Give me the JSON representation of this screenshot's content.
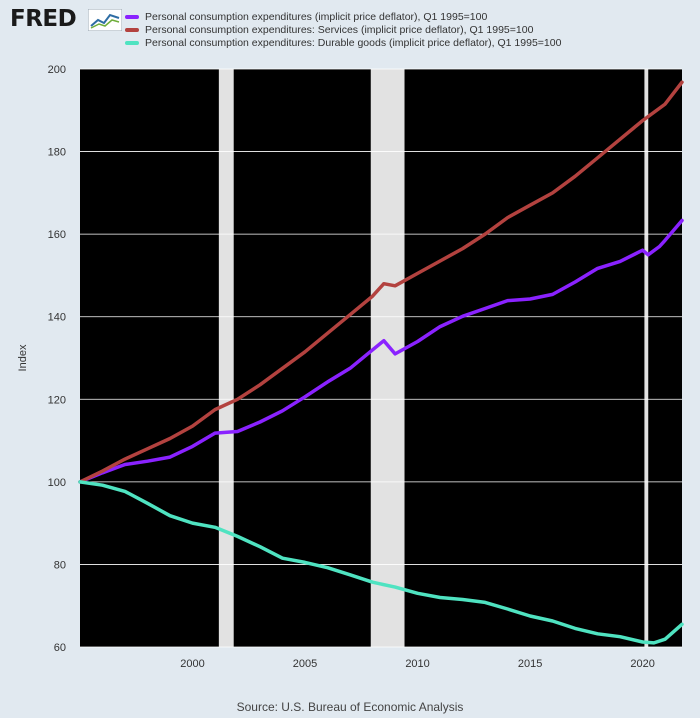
{
  "brand": {
    "logo_text": "FRED",
    "logo_icon": "line-chart-icon"
  },
  "legend": [
    {
      "label": "Personal consumption expenditures (implicit price deflator), Q1 1995=100",
      "color": "#8a22ff"
    },
    {
      "label": "Personal consumption expenditures: Services (implicit price deflator), Q1 1995=100",
      "color": "#b3423f"
    },
    {
      "label": "Personal consumption expenditures: Durable goods (implicit price deflator), Q1 1995=100",
      "color": "#4fe3c1"
    }
  ],
  "source": "Source: U.S. Bureau of Economic Analysis",
  "chart_data": {
    "type": "line",
    "ylabel": "Index",
    "xlabel": "",
    "xlim": [
      1995.0,
      2021.75
    ],
    "ylim": [
      60,
      200
    ],
    "x_ticks": [
      2000,
      2005,
      2010,
      2015,
      2020
    ],
    "y_ticks": [
      60,
      80,
      100,
      120,
      140,
      160,
      180,
      200
    ],
    "grid": true,
    "plot_background": "#000000",
    "legend_position": "top",
    "recessions": [
      [
        2001.17,
        2001.83
      ],
      [
        2007.92,
        2009.42
      ],
      [
        2020.08,
        2020.25
      ]
    ],
    "series": [
      {
        "name": "Personal consumption expenditures (implicit price deflator), Q1 1995=100",
        "color": "#8a22ff",
        "x": [
          1995,
          1996,
          1997,
          1998,
          1999,
          2000,
          2001,
          2002,
          2003,
          2004,
          2005,
          2006,
          2007,
          2008.5,
          2009,
          2010,
          2011,
          2012,
          2013,
          2014,
          2015,
          2016,
          2017,
          2018,
          2019,
          2020,
          2020.25,
          2020.75,
          2021,
          2021.75
        ],
        "values": [
          100,
          102.2,
          104.2,
          105.0,
          106.0,
          108.6,
          111.8,
          112.2,
          114.5,
          117.2,
          120.6,
          124.2,
          127.5,
          134.2,
          131.0,
          134.0,
          137.6,
          140.1,
          142.0,
          143.9,
          144.3,
          145.4,
          148.4,
          151.7,
          153.4,
          156.1,
          155.0,
          157.0,
          158.5,
          163.3
        ]
      },
      {
        "name": "Personal consumption expenditures: Services (implicit price deflator), Q1 1995=100",
        "color": "#b3423f",
        "x": [
          1995,
          1996,
          1997,
          1998,
          1999,
          2000,
          2001,
          2002,
          2003,
          2004,
          2005,
          2006,
          2007,
          2008,
          2008.5,
          2009,
          2010,
          2011,
          2012,
          2013,
          2014,
          2015,
          2016,
          2017,
          2018,
          2019,
          2020,
          2021,
          2021.75
        ],
        "values": [
          100,
          102.6,
          105.5,
          108.0,
          110.5,
          113.5,
          117.5,
          120.0,
          123.5,
          127.5,
          131.5,
          136.0,
          140.5,
          145.0,
          148.0,
          147.5,
          150.5,
          153.5,
          156.5,
          160.0,
          164.0,
          167.0,
          170.0,
          174.0,
          178.5,
          183.0,
          187.5,
          191.5,
          196.8
        ]
      },
      {
        "name": "Personal consumption expenditures: Durable goods (implicit price deflator), Q1 1995=100",
        "color": "#4fe3c1",
        "x": [
          1995,
          1996,
          1997,
          1998,
          1999,
          2000,
          2001,
          2002,
          2003,
          2004,
          2005,
          2006,
          2007,
          2008,
          2009,
          2010,
          2011,
          2012,
          2013,
          2014,
          2015,
          2016,
          2017,
          2018,
          2019,
          2020,
          2020.5,
          2021,
          2021.75
        ],
        "values": [
          100,
          99.2,
          97.7,
          94.8,
          91.8,
          90.0,
          89.0,
          86.8,
          84.3,
          81.5,
          80.5,
          79.2,
          77.5,
          75.7,
          74.5,
          73.0,
          72.0,
          71.5,
          70.8,
          69.2,
          67.5,
          66.3,
          64.5,
          63.2,
          62.5,
          61.2,
          61.0,
          61.9,
          65.5
        ]
      }
    ]
  }
}
